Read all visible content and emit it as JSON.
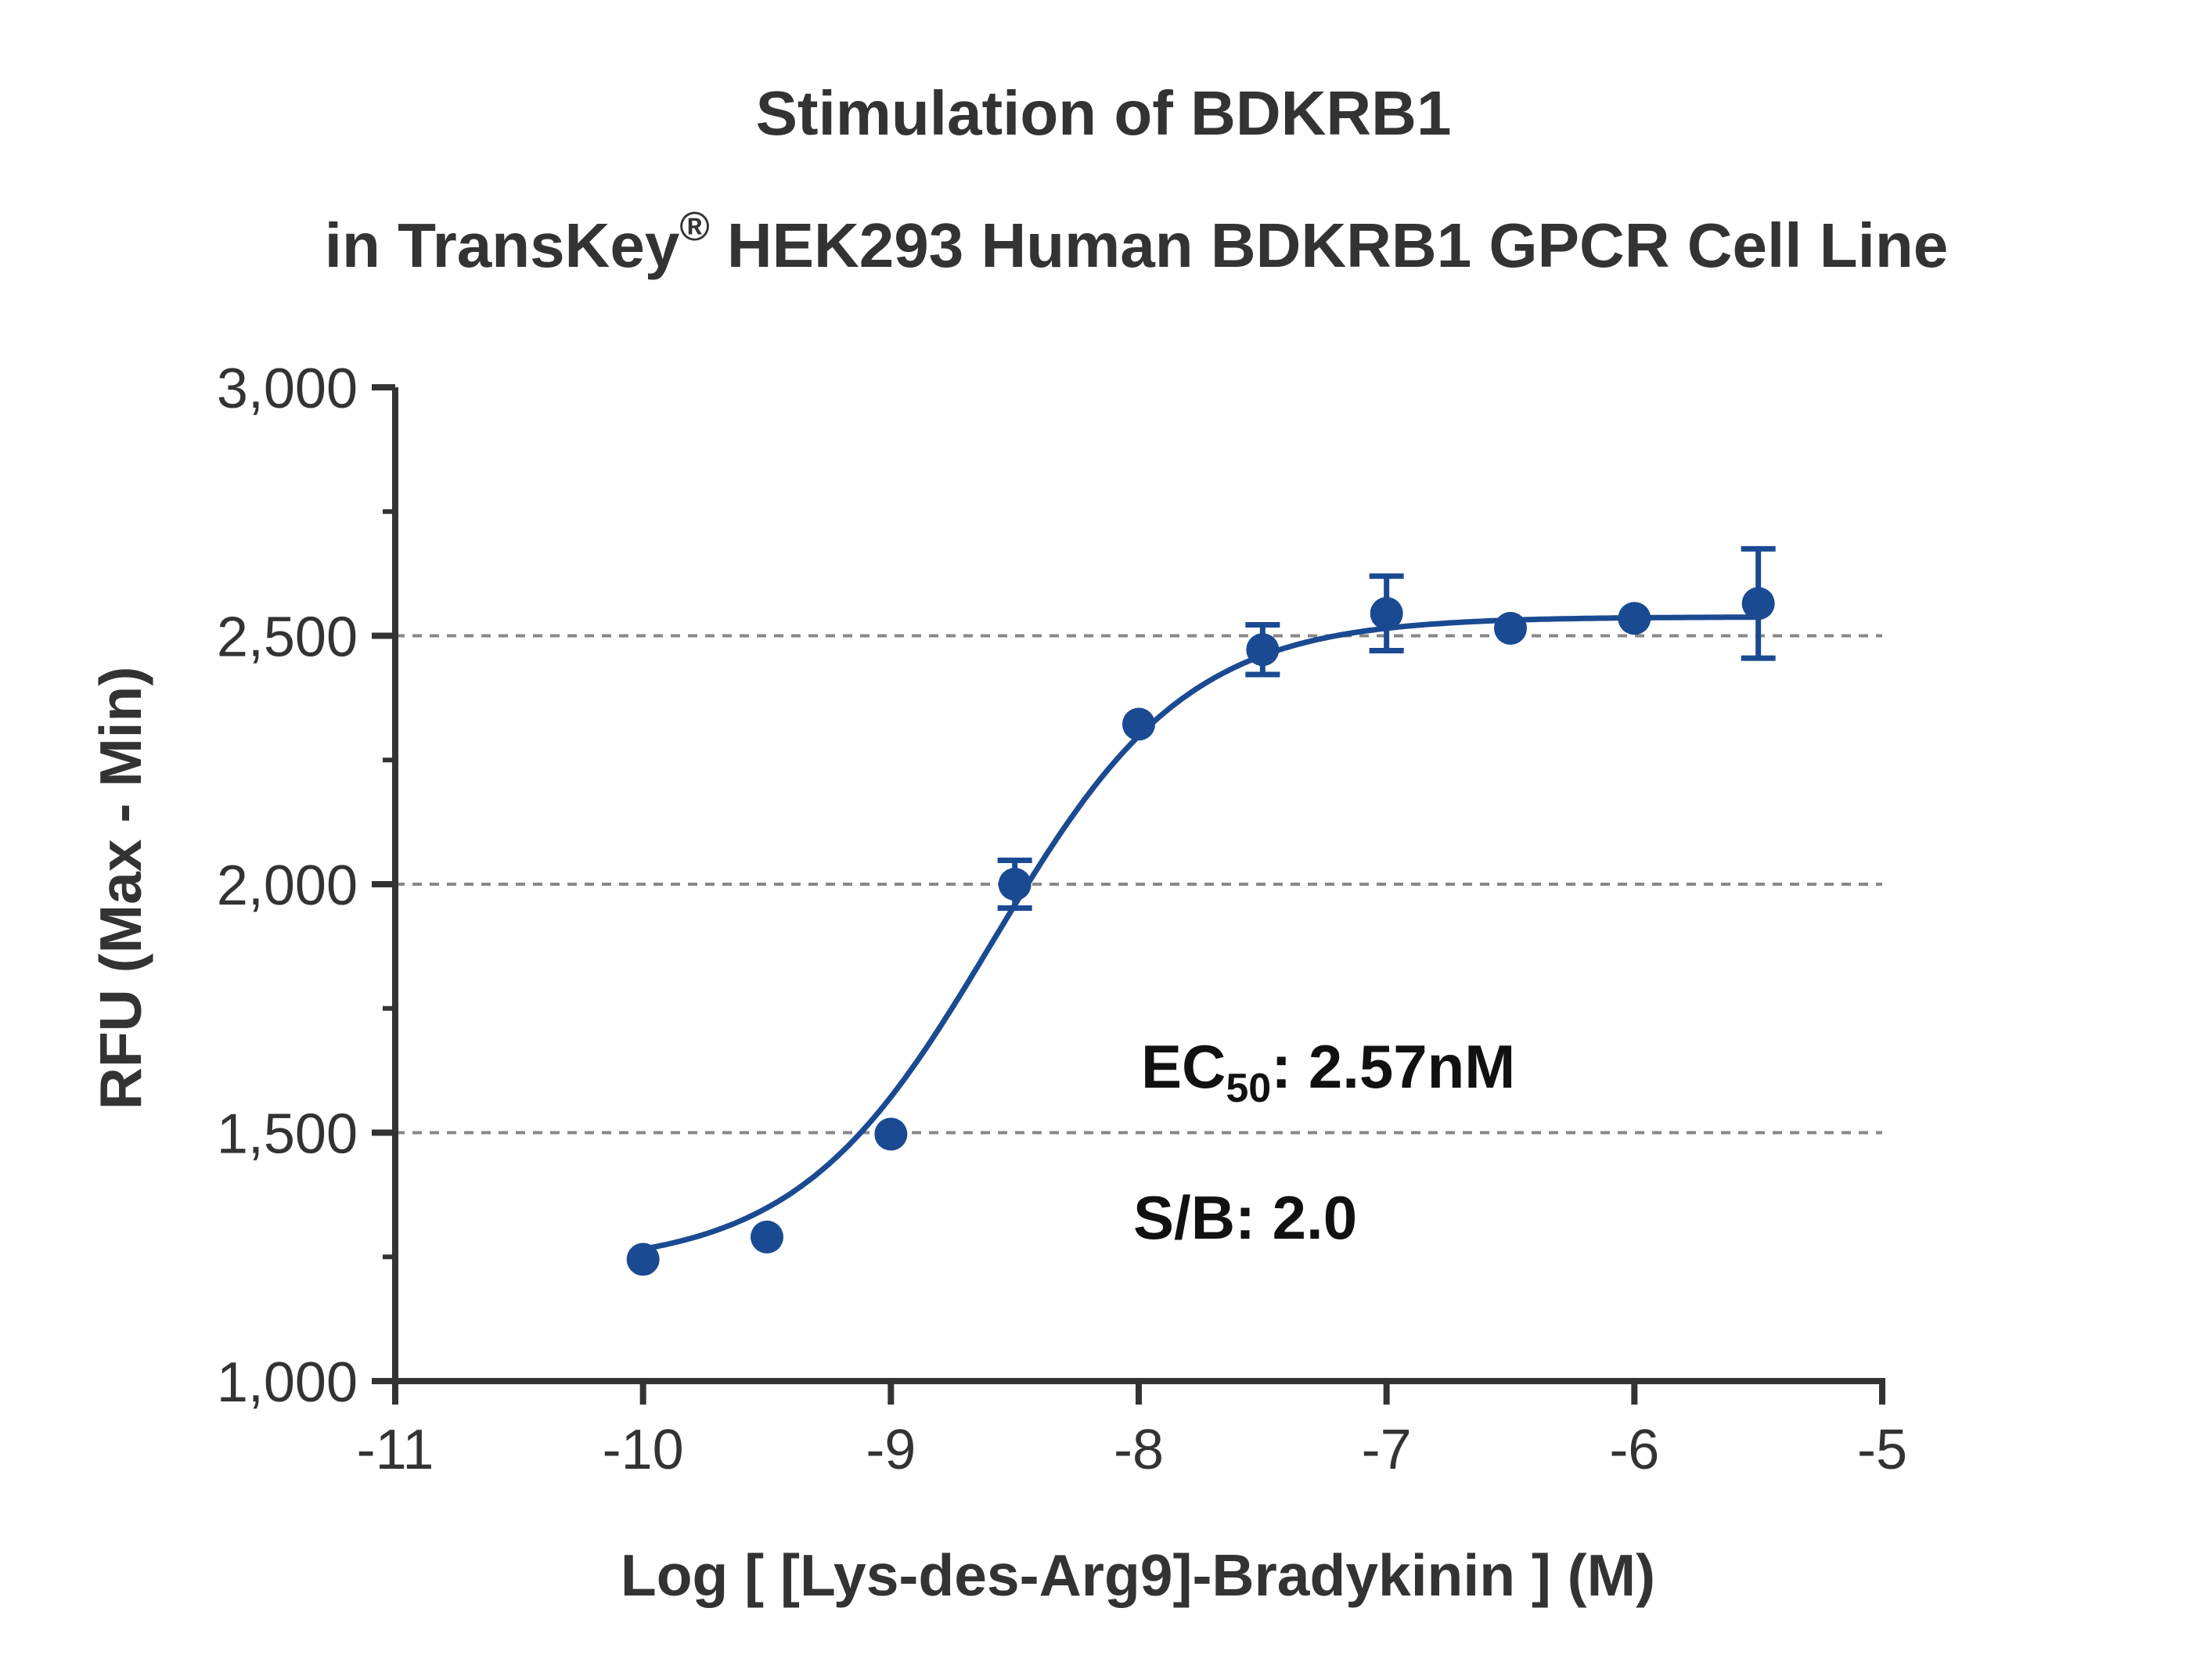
{
  "chart_data": {
    "type": "scatter",
    "title_line1": "Stimulation of  BDKRB1",
    "title_line2_pre": "in TransKey",
    "title_line2_sup": "®",
    "title_line2_post": " HEK293 Human BDKRB1 GPCR Cell Line",
    "xlabel": "Log [ [Lys-des-Arg9]-Bradykinin ]  (M)",
    "ylabel": "RFU (Max - Min)",
    "xlim": [
      -11,
      -5
    ],
    "ylim": [
      1000,
      3000
    ],
    "x_ticks": [
      -11,
      -10,
      -9,
      -8,
      -7,
      -6,
      -5
    ],
    "x_tick_labels": [
      "-11",
      "-10",
      "-9",
      "-8",
      "-7",
      "-6",
      "-5"
    ],
    "y_ticks": [
      1000,
      1500,
      2000,
      2500,
      3000
    ],
    "y_tick_labels": [
      "1,000",
      "1,500",
      "2,000",
      "2,500",
      "3,000"
    ],
    "y_minor_ticks": [
      1250,
      1750,
      2250,
      2750
    ],
    "gridlines_y": [
      1500,
      2000,
      2500
    ],
    "grid_style": "dashed",
    "series": [
      {
        "color": "#1a4a92",
        "points": [
          {
            "x": -10.0,
            "y": 1245,
            "err": 0
          },
          {
            "x": -9.5,
            "y": 1290,
            "err": 0
          },
          {
            "x": -9.0,
            "y": 1497,
            "err": 0
          },
          {
            "x": -8.5,
            "y": 2000,
            "err": 48
          },
          {
            "x": -8.0,
            "y": 2322,
            "err": 0
          },
          {
            "x": -7.5,
            "y": 2472,
            "err": 50
          },
          {
            "x": -7.0,
            "y": 2545,
            "err": 75
          },
          {
            "x": -6.5,
            "y": 2515,
            "err": 0
          },
          {
            "x": -6.0,
            "y": 2535,
            "err": 0
          },
          {
            "x": -5.5,
            "y": 2565,
            "err": 110
          }
        ],
        "fit": {
          "model": "four-parameter logistic",
          "bottom": 1230,
          "top": 2538,
          "logEC50": -8.59,
          "hill": 1.1,
          "x_range": [
            -10.0,
            -5.5
          ]
        }
      }
    ],
    "annotations": {
      "ec50_prefix": "EC",
      "ec50_sub": "50",
      "ec50_suffix": ": 2.57nM",
      "sb": "S/B: 2.0"
    }
  }
}
